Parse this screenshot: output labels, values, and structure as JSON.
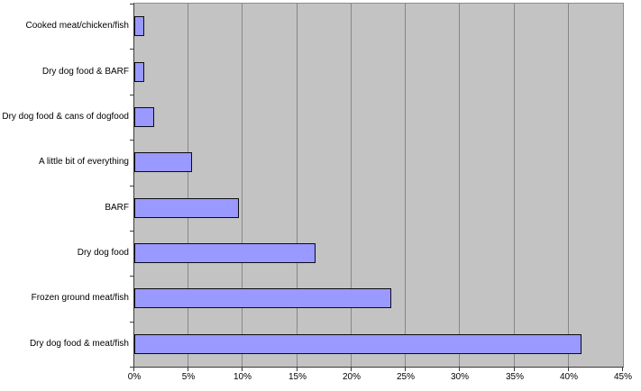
{
  "chart_data": {
    "type": "bar",
    "orientation": "horizontal",
    "title": "",
    "xlabel": "",
    "ylabel": "",
    "categories": [
      "Cooked meat/chicken/fish",
      "Dry dog food & BARF",
      "Dry dog food & cans of dogfood",
      "A little bit of everything",
      "BARF",
      "Dry dog food",
      "Frozen ground meat/fish",
      "Dry dog food & meat/fish"
    ],
    "values": [
      0.9,
      0.9,
      1.8,
      5.3,
      9.6,
      16.7,
      23.7,
      41.2
    ],
    "value_suffix": "%",
    "xlim": [
      0,
      45
    ],
    "x_tick_values": [
      0,
      5,
      10,
      15,
      20,
      25,
      30,
      35,
      40,
      45
    ],
    "x_tick_labels": [
      "0%",
      "5%",
      "10%",
      "15%",
      "20%",
      "25%",
      "30%",
      "35%",
      "40%",
      "45%"
    ],
    "grid": true,
    "legend": false,
    "colors": {
      "plot_background": "#c3c3c3",
      "gridline": "#878787",
      "plot_border": "#8c8c8c",
      "axis_line": "#3a3a3a",
      "bar_fill": "#9999ff",
      "bar_border": "#0a0a14",
      "text": "#000000",
      "page_background": "#ffffff"
    }
  }
}
